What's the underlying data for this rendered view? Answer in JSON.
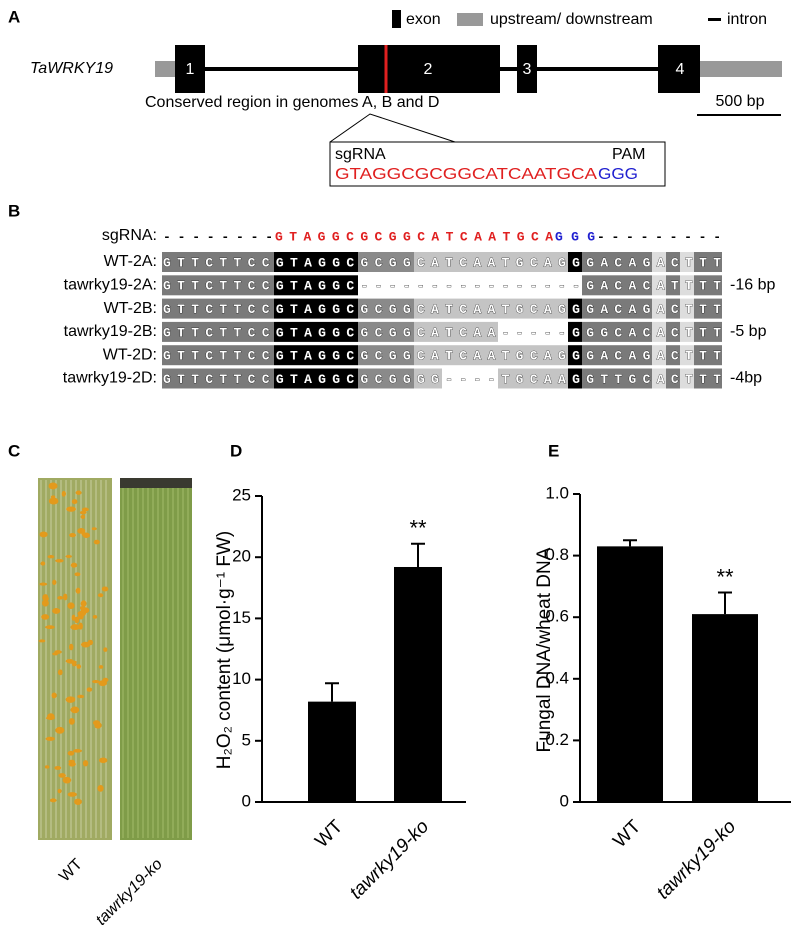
{
  "panel_a": {
    "label": "A",
    "gene": "TaWRKY19",
    "legend": [
      "exon",
      "upstream/ downstream",
      "intron"
    ],
    "exons": [
      "1",
      "2",
      "3",
      "4"
    ],
    "note": "Conserved region in genomes A, B and D",
    "scale": "500 bp",
    "box": {
      "sgrna": "sgRNA",
      "pam_label": "PAM",
      "guide": "GTAGGCGCGGCATCAATGCA",
      "pam": "GGG"
    }
  },
  "panel_b": {
    "label": "B",
    "sgrna_row": {
      "name": "sgRNA:",
      "left": "--------",
      "guide": "GTAGGCGCGGCATCAATGCA",
      "pam": "GGG",
      "right": "---------"
    },
    "rows": [
      {
        "name": "WT-2A:",
        "seq": "GTTCTTCCGTAGGCGCGGCATCAATGCAGGGACAGACTTT"
      },
      {
        "name": "tawrky19-2A:",
        "seq": "GTTCTTCCGTAGGC----------------GACACATTTT",
        "note": "-16 bp"
      },
      {
        "name": "WT-2B:",
        "seq": "GTTCTTCCGTAGGCGCGGCATCAATGCAGGGACAGACTTT"
      },
      {
        "name": "tawrky19-2B:",
        "seq": "GTTCTTCCGTAGGCGCGGCATCAA-----GGGCACACTTT",
        "note": "-5 bp"
      },
      {
        "name": "WT-2D:",
        "seq": "GTTCTTCCGTAGGCGCGGCATCAATGCAGGGACAGACTTT"
      },
      {
        "name": "tawrky19-2D:",
        "seq": "GTTCTTCCGTAGGCGCGGGG----TGCAAGGTTGCACTTT",
        "note": "-4bp"
      }
    ]
  },
  "panel_c": {
    "label": "C",
    "labels": [
      "WT",
      "tawrky19-ko"
    ]
  },
  "chart_data": [
    {
      "type": "bar",
      "label": "D",
      "ylabel": "H₂O₂ content (μmol·g⁻¹ FW)",
      "categories": [
        "WT",
        "tawrky19-ko"
      ],
      "values": [
        8.2,
        19.2
      ],
      "errors": [
        1.5,
        1.9
      ],
      "annotations": [
        null,
        "**"
      ],
      "color": "#000000",
      "ylim": [
        0,
        25
      ],
      "yticks": [
        0,
        5,
        10,
        15,
        20,
        25
      ]
    },
    {
      "type": "bar",
      "label": "E",
      "ylabel": "Fungal DNA/wheat DNA",
      "categories": [
        "WT",
        "tawrky19-ko"
      ],
      "values": [
        0.83,
        0.61
      ],
      "errors": [
        0.02,
        0.07
      ],
      "annotations": [
        null,
        "**"
      ],
      "color": "#000000",
      "ylim": [
        0,
        1
      ],
      "yticks": [
        0,
        0.2,
        0.4,
        0.6,
        0.8,
        {
          "value": 1,
          "label": "1.0"
        }
      ]
    }
  ]
}
